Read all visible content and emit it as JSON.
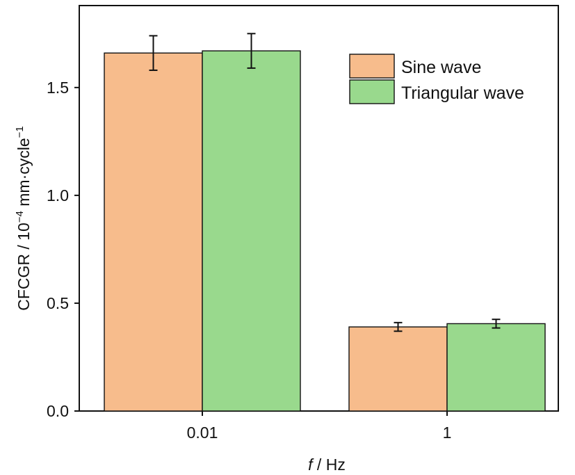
{
  "chart_data": {
    "type": "bar",
    "categories": [
      "0.01",
      "1"
    ],
    "series": [
      {
        "name": "Sine wave",
        "color": "#f7bc8c",
        "values": [
          1.66,
          0.39
        ],
        "error": [
          0.08,
          0.02
        ]
      },
      {
        "name": "Triangular wave",
        "color": "#99d98d",
        "values": [
          1.67,
          0.405
        ],
        "error": [
          0.08,
          0.02
        ]
      }
    ],
    "xlabel_italic": "f",
    "xlabel_rest": " / Hz",
    "ylabel_main": "CFCGR / 10",
    "ylabel_exp1": "−4",
    "ylabel_mid": " mm·cycle",
    "ylabel_exp2": "−1",
    "ylim": [
      0,
      1.88
    ],
    "yticks": [
      0.0,
      0.5,
      1.0,
      1.5
    ],
    "ytick_labels": [
      "0.0",
      "0.5",
      "1.0",
      "1.5"
    ],
    "legend_position": "top-right",
    "grid": false
  }
}
